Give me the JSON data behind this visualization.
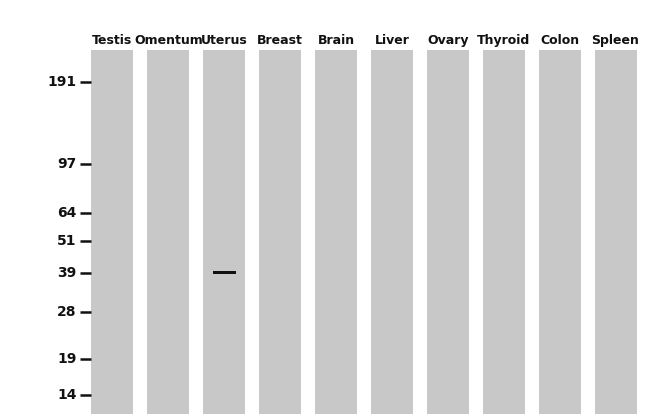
{
  "outer_background": "#ffffff",
  "lane_color": "#c8c8c8",
  "lane_border_color": "#bbbbbb",
  "num_lanes": 10,
  "lane_labels": [
    "Testis",
    "Omentum",
    "Uterus",
    "Breast",
    "Brain",
    "Liver",
    "Ovary",
    "Thyroid",
    "Colon",
    "Spleen"
  ],
  "marker_values": [
    191,
    97,
    64,
    51,
    39,
    28,
    19,
    14
  ],
  "marker_label_color": "#111111",
  "band_lane_index": 2,
  "band_kda": 39,
  "band_color": "#111111",
  "marker_fontsize": 10,
  "label_fontsize": 9
}
